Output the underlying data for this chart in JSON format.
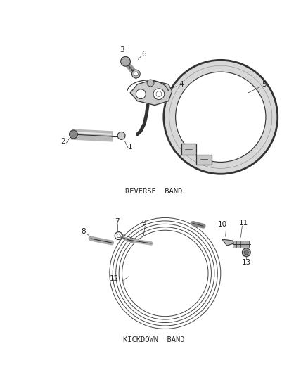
{
  "bg_color": "#ffffff",
  "lc": "#333333",
  "label_color": "#222222",
  "reverse_band_label": "REVERSE  BAND",
  "kickdown_band_label": "KICKDOWN  BAND",
  "figsize": [
    4.38,
    5.33
  ],
  "dpi": 100
}
